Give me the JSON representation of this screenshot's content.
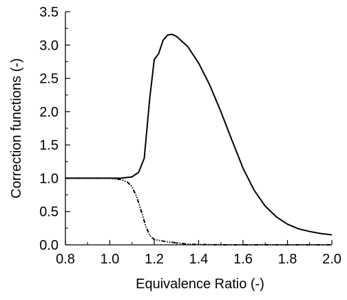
{
  "chart_data": {
    "type": "line",
    "title": "",
    "xlabel": "Equivalence Ratio (-)",
    "ylabel": "Correction functions (-)",
    "xlim": [
      0.8,
      2.0
    ],
    "ylim": [
      0.0,
      3.5
    ],
    "x_ticks": [
      "0.8",
      "1.0",
      "1.2",
      "1.4",
      "1.6",
      "1.8",
      "2.0"
    ],
    "y_ticks": [
      "0.0",
      "0.5",
      "1.0",
      "1.5",
      "2.0",
      "2.5",
      "3.0",
      "3.5"
    ],
    "grid": false,
    "legend": "none",
    "series": [
      {
        "style": "solid",
        "color": "#000000",
        "x": [
          0.8,
          0.9,
          1.0,
          1.05,
          1.1,
          1.13,
          1.155,
          1.18,
          1.2,
          1.22,
          1.24,
          1.26,
          1.28,
          1.3,
          1.35,
          1.4,
          1.45,
          1.5,
          1.55,
          1.6,
          1.65,
          1.7,
          1.75,
          1.8,
          1.85,
          1.9,
          1.95,
          2.0
        ],
        "y": [
          1.0,
          1.0,
          1.0,
          1.0,
          1.02,
          1.09,
          1.3,
          2.2,
          2.78,
          2.87,
          3.07,
          3.15,
          3.16,
          3.13,
          2.98,
          2.73,
          2.4,
          2.0,
          1.57,
          1.15,
          0.82,
          0.58,
          0.42,
          0.31,
          0.24,
          0.2,
          0.17,
          0.15
        ]
      },
      {
        "style": "dash-dot-dot",
        "color": "#000000",
        "x": [
          0.8,
          0.9,
          1.0,
          1.05,
          1.08,
          1.1,
          1.12,
          1.14,
          1.16,
          1.18,
          1.2,
          1.25,
          1.3,
          1.35,
          1.4,
          1.5,
          1.6,
          1.8,
          2.0
        ],
        "y": [
          1.0,
          1.0,
          1.0,
          0.98,
          0.94,
          0.87,
          0.73,
          0.53,
          0.3,
          0.14,
          0.08,
          0.05,
          0.03,
          0.01,
          0.005,
          0.0,
          0.0,
          0.0,
          0.0
        ]
      }
    ]
  }
}
